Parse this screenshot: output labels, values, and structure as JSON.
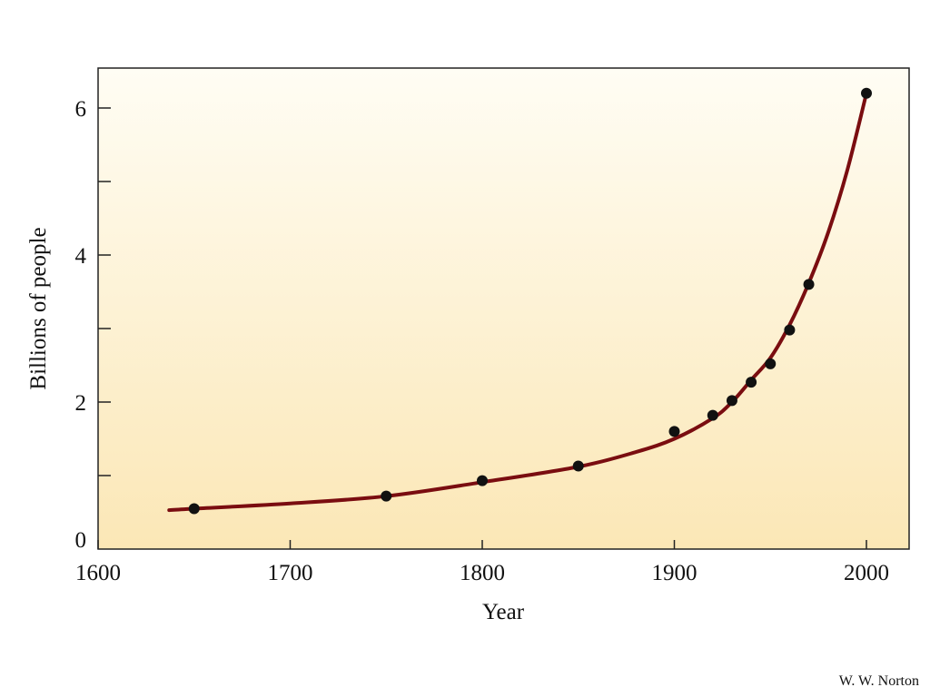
{
  "chart_data": {
    "type": "scatter",
    "title": "",
    "xlabel": "Year",
    "ylabel": "Billions of people",
    "xlim": [
      1600,
      2020
    ],
    "ylim": [
      0,
      6.6
    ],
    "x_ticks": [
      1600,
      1700,
      1800,
      1900,
      2000
    ],
    "x_tick_labels": [
      "1600",
      "1700",
      "1800",
      "1900",
      "2000"
    ],
    "y_ticks": [
      0,
      1,
      2,
      3,
      4,
      5,
      6
    ],
    "y_tick_labels": [
      "0",
      "",
      "2",
      "",
      "4",
      "",
      "6"
    ],
    "grid": false,
    "background": "cream gradient",
    "series": [
      {
        "kind": "points",
        "color": "#111111",
        "points": [
          {
            "x": 1650,
            "y": 0.55
          },
          {
            "x": 1750,
            "y": 0.72
          },
          {
            "x": 1800,
            "y": 0.93
          },
          {
            "x": 1850,
            "y": 1.13
          },
          {
            "x": 1900,
            "y": 1.6
          },
          {
            "x": 1920,
            "y": 1.82
          },
          {
            "x": 1930,
            "y": 2.02
          },
          {
            "x": 1940,
            "y": 2.27
          },
          {
            "x": 1950,
            "y": 2.52
          },
          {
            "x": 1960,
            "y": 2.98
          },
          {
            "x": 1970,
            "y": 3.6
          },
          {
            "x": 2000,
            "y": 6.2
          }
        ]
      },
      {
        "kind": "curve",
        "color": "#7a0d10",
        "points": [
          {
            "x": 1637,
            "y": 0.53
          },
          {
            "x": 1650,
            "y": 0.55
          },
          {
            "x": 1700,
            "y": 0.62
          },
          {
            "x": 1750,
            "y": 0.72
          },
          {
            "x": 1800,
            "y": 0.91
          },
          {
            "x": 1850,
            "y": 1.12
          },
          {
            "x": 1880,
            "y": 1.32
          },
          {
            "x": 1900,
            "y": 1.5
          },
          {
            "x": 1920,
            "y": 1.78
          },
          {
            "x": 1930,
            "y": 2.0
          },
          {
            "x": 1940,
            "y": 2.3
          },
          {
            "x": 1950,
            "y": 2.6
          },
          {
            "x": 1960,
            "y": 3.05
          },
          {
            "x": 1970,
            "y": 3.62
          },
          {
            "x": 1980,
            "y": 4.3
          },
          {
            "x": 1990,
            "y": 5.15
          },
          {
            "x": 2000,
            "y": 6.2
          }
        ]
      }
    ]
  },
  "credit": "W. W. Norton"
}
